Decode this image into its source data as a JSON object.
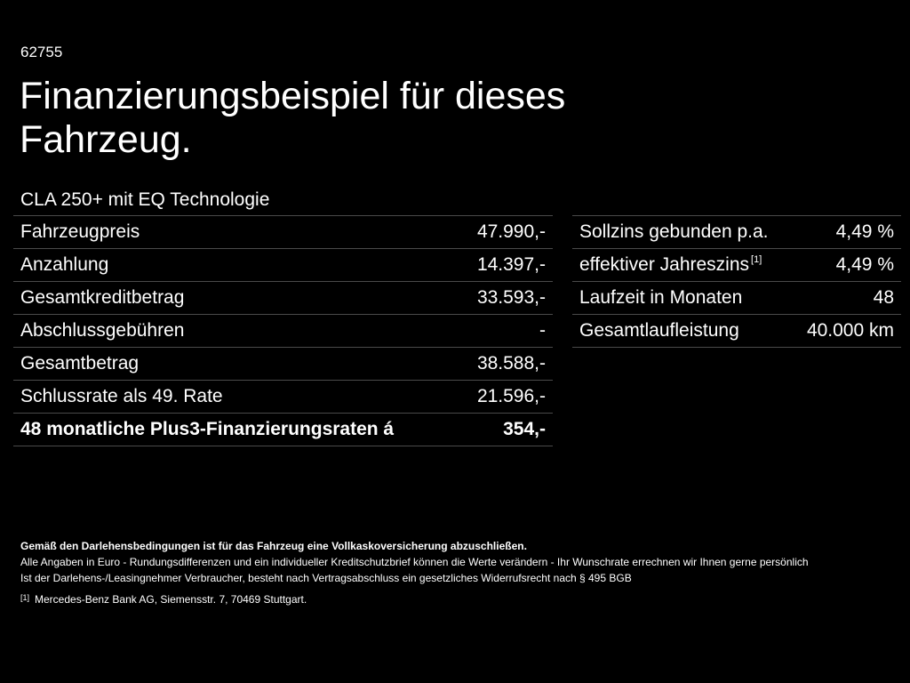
{
  "code": "62755",
  "title": "Finanzierungsbeispiel für dieses Fahrzeug.",
  "model": "CLA 250+ mit EQ Technologie",
  "left_table": [
    {
      "label": "Fahrzeugpreis",
      "value": "47.990,-"
    },
    {
      "label": "Anzahlung",
      "value": "14.397,-"
    },
    {
      "label": "Gesamtkreditbetrag",
      "value": "33.593,-"
    },
    {
      "label": "Abschlussgebühren",
      "value": "-"
    },
    {
      "label": "Gesamtbetrag",
      "value": "38.588,-"
    },
    {
      "label": "Schlussrate als 49. Rate",
      "value": "21.596,-"
    },
    {
      "label": "48 monatliche Plus3-Finanzierungsraten á",
      "value": "354,-"
    }
  ],
  "right_table": [
    {
      "label": "Sollzins gebunden p.a.",
      "value": "4,49 %"
    },
    {
      "label": "effektiver Jahreszins",
      "ref": "[1]",
      "value": "4,49 %"
    },
    {
      "label": "Laufzeit in Monaten",
      "value": "48"
    },
    {
      "label": "Gesamtlaufleistung",
      "value": "40.000 km"
    }
  ],
  "notes": {
    "bold": "Gemäß den Darlehensbedingungen ist für das Fahrzeug eine Vollkaskoversicherung abzuschließen.",
    "line1": "Alle Angaben in Euro - Rundungsdifferenzen und ein individueller Kreditschutzbrief können die Werte verändern - Ihr Wunschrate errechnen wir Ihnen gerne persönlich",
    "line2": "Ist der Darlehens-/Leasingnehmer Verbraucher, besteht nach Vertragsabschluss ein gesetzliches Widerrufsrecht nach § 495 BGB",
    "footnote_ref": "[1]",
    "footnote_text": "Mercedes-Benz Bank AG, Siemensstr. 7, 70469 Stuttgart."
  }
}
